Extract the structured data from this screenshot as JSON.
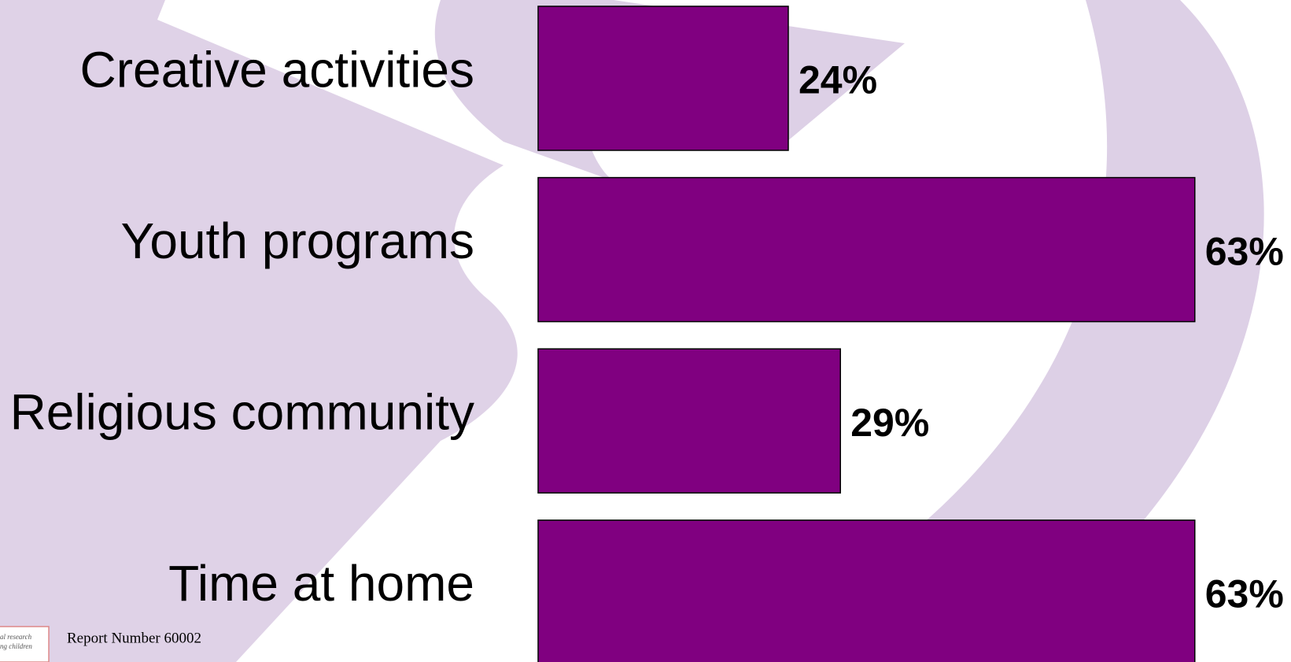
{
  "chart_data": {
    "type": "bar",
    "orientation": "horizontal",
    "categories": [
      "Creative activities",
      "Youth programs",
      "Religious community",
      "Time at home"
    ],
    "values": [
      24,
      63,
      29,
      63
    ],
    "value_labels": [
      "24%",
      "63%",
      "29%",
      "63%"
    ],
    "color": "#800080"
  },
  "footer": {
    "report": "Report Number 60002",
    "logo_lines": [
      "al research",
      "ng children"
    ]
  }
}
